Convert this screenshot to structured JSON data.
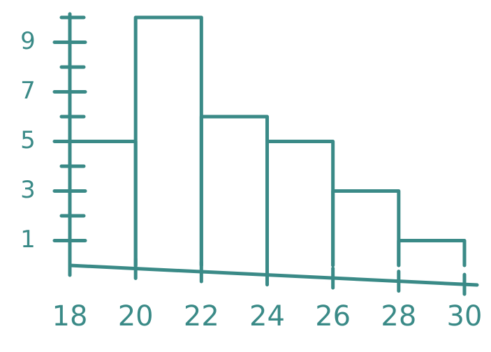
{
  "chart_data": {
    "type": "histogram",
    "bins": [
      18,
      20,
      22,
      24,
      26,
      28,
      30
    ],
    "values": [
      5,
      10,
      6,
      5,
      3,
      1
    ],
    "color": "#3a8a87",
    "xlim": [
      18,
      30
    ],
    "xticks": [
      18,
      20,
      22,
      24,
      26,
      28,
      30
    ],
    "ylim": [
      0,
      10
    ],
    "yticks": [
      1,
      3,
      5,
      7,
      9
    ],
    "y_minor_ticks": [
      2,
      4,
      6,
      8,
      10
    ]
  }
}
